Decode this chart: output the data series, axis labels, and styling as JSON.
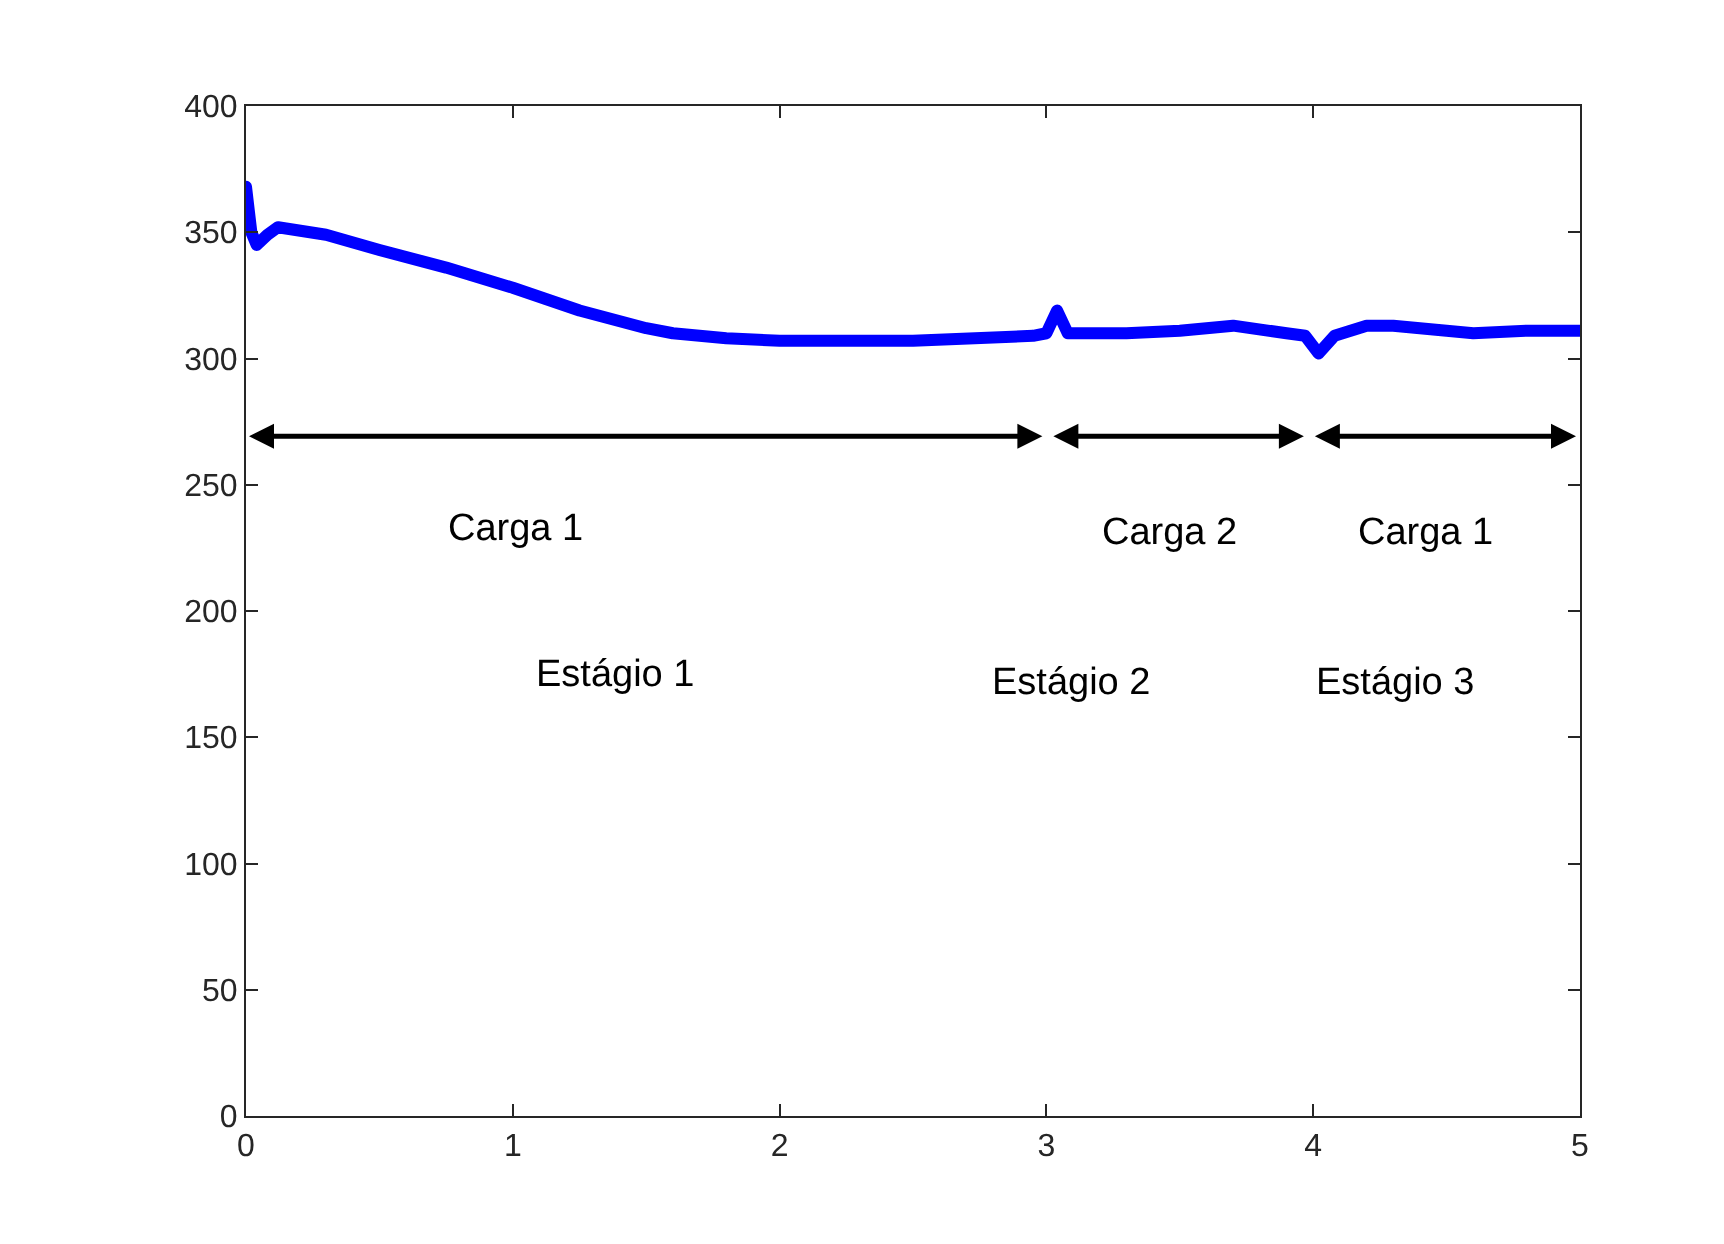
{
  "chart_data": {
    "type": "line",
    "xlim": [
      0,
      5
    ],
    "ylim": [
      0,
      400
    ],
    "xticks": [
      0,
      1,
      2,
      3,
      4,
      5
    ],
    "yticks": [
      0,
      50,
      100,
      150,
      200,
      250,
      300,
      350,
      400
    ],
    "grid": false,
    "marker": "none",
    "line_style": "solid",
    "series": [
      {
        "color": "#0000ff",
        "x": [
          0,
          0.02,
          0.04,
          0.08,
          0.12,
          0.3,
          0.5,
          0.75,
          1.0,
          1.25,
          1.5,
          1.6,
          1.8,
          2.0,
          2.5,
          2.95,
          3.0,
          3.04,
          3.08,
          3.3,
          3.5,
          3.7,
          3.9,
          3.97,
          4.02,
          4.08,
          4.2,
          4.3,
          4.5,
          4.6,
          4.8,
          5.0
        ],
        "values": [
          368,
          350,
          345,
          349,
          352,
          349,
          343,
          336,
          328,
          319,
          312,
          310,
          308,
          307,
          307,
          309,
          310,
          319,
          310,
          310,
          311,
          313,
          310,
          309,
          302,
          309,
          313,
          313,
          311,
          310,
          311,
          311
        ]
      }
    ],
    "annotations": [
      "Carga 1",
      "Estágio 1",
      "Carga 2",
      "Estágio 2",
      "Carga 1",
      "Estágio 3"
    ]
  }
}
